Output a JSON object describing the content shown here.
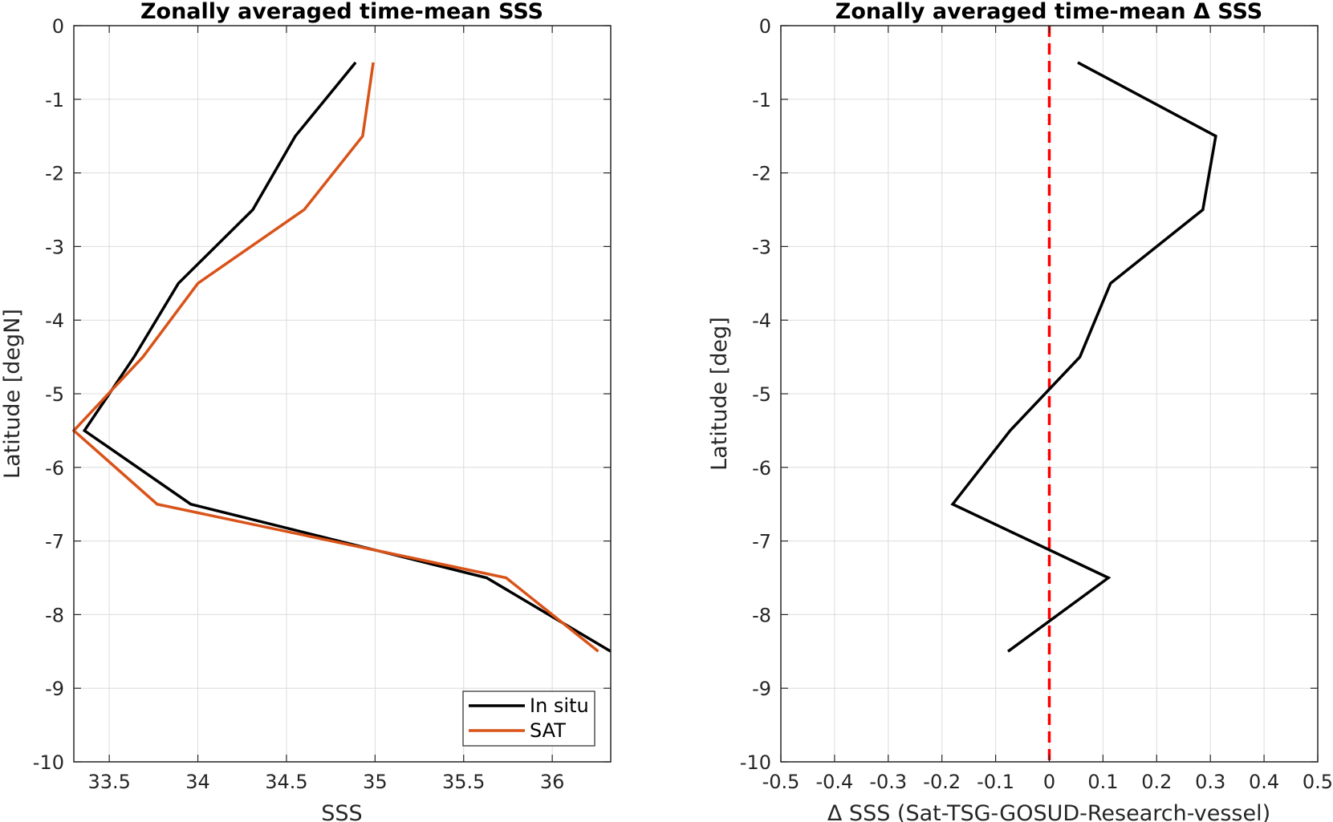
{
  "chart_data": [
    {
      "type": "line",
      "title": "Zonally averaged time-mean SSS",
      "xlabel": "SSS",
      "ylabel": "Latitude [degN]",
      "xlim": [
        33.3,
        36.33
      ],
      "ylim": [
        -10,
        0
      ],
      "xticks": [
        33.5,
        34,
        34.5,
        35,
        35.5,
        36
      ],
      "xtick_labels": [
        "33.5",
        "34",
        "34.5",
        "35",
        "35.5",
        "36"
      ],
      "yticks": [
        0,
        -1,
        -2,
        -3,
        -4,
        -5,
        -6,
        -7,
        -8,
        -9,
        -10
      ],
      "ytick_labels": [
        "0",
        "-1",
        "-2",
        "-3",
        "-4",
        "-5",
        "-6",
        "-7",
        "-8",
        "-9",
        "-10"
      ],
      "grid": true,
      "legend": "bottom-right",
      "series": [
        {
          "name": "In situ",
          "color": "#000000",
          "x": [
            34.89,
            34.55,
            34.31,
            33.89,
            33.64,
            33.36,
            33.96,
            35.63,
            36.33
          ],
          "y": [
            -0.5,
            -1.5,
            -2.5,
            -3.5,
            -4.5,
            -5.5,
            -6.5,
            -7.5,
            -8.5
          ]
        },
        {
          "name": "SAT",
          "color": "#d95319",
          "x": [
            34.99,
            34.93,
            34.6,
            34.0,
            33.69,
            33.3,
            33.77,
            35.74,
            36.26
          ],
          "y": [
            -0.5,
            -1.5,
            -2.5,
            -3.5,
            -4.5,
            -5.5,
            -6.5,
            -7.5,
            -8.5
          ]
        }
      ]
    },
    {
      "type": "line",
      "title": "Zonally averaged time-mean Δ SSS",
      "xlabel": "Δ SSS (Sat-TSG-GOSUD-Research-vessel)",
      "ylabel": "Latitude [deg]",
      "xlim": [
        -0.5,
        0.5
      ],
      "ylim": [
        -10,
        0
      ],
      "xticks": [
        -0.5,
        -0.4,
        -0.3,
        -0.2,
        -0.1,
        0,
        0.1,
        0.2,
        0.3,
        0.4,
        0.5
      ],
      "xtick_labels": [
        "-0.5",
        "-0.4",
        "-0.3",
        "-0.2",
        "-0.1",
        "0",
        "0.1",
        "0.2",
        "0.3",
        "0.4",
        "0.5"
      ],
      "yticks": [
        0,
        -1,
        -2,
        -3,
        -4,
        -5,
        -6,
        -7,
        -8,
        -9,
        -10
      ],
      "ytick_labels": [
        "0",
        "-1",
        "-2",
        "-3",
        "-4",
        "-5",
        "-6",
        "-7",
        "-8",
        "-9",
        "-10"
      ],
      "grid": true,
      "reference_line": {
        "x": 0,
        "color": "#ff0000",
        "style": "dashed"
      },
      "series": [
        {
          "color": "#000000",
          "x": [
            0.053,
            0.31,
            0.286,
            0.114,
            0.057,
            -0.073,
            -0.18,
            0.11,
            -0.077
          ],
          "y": [
            -0.5,
            -1.5,
            -2.5,
            -3.5,
            -4.5,
            -5.5,
            -6.5,
            -7.5,
            -8.5
          ]
        }
      ]
    }
  ]
}
